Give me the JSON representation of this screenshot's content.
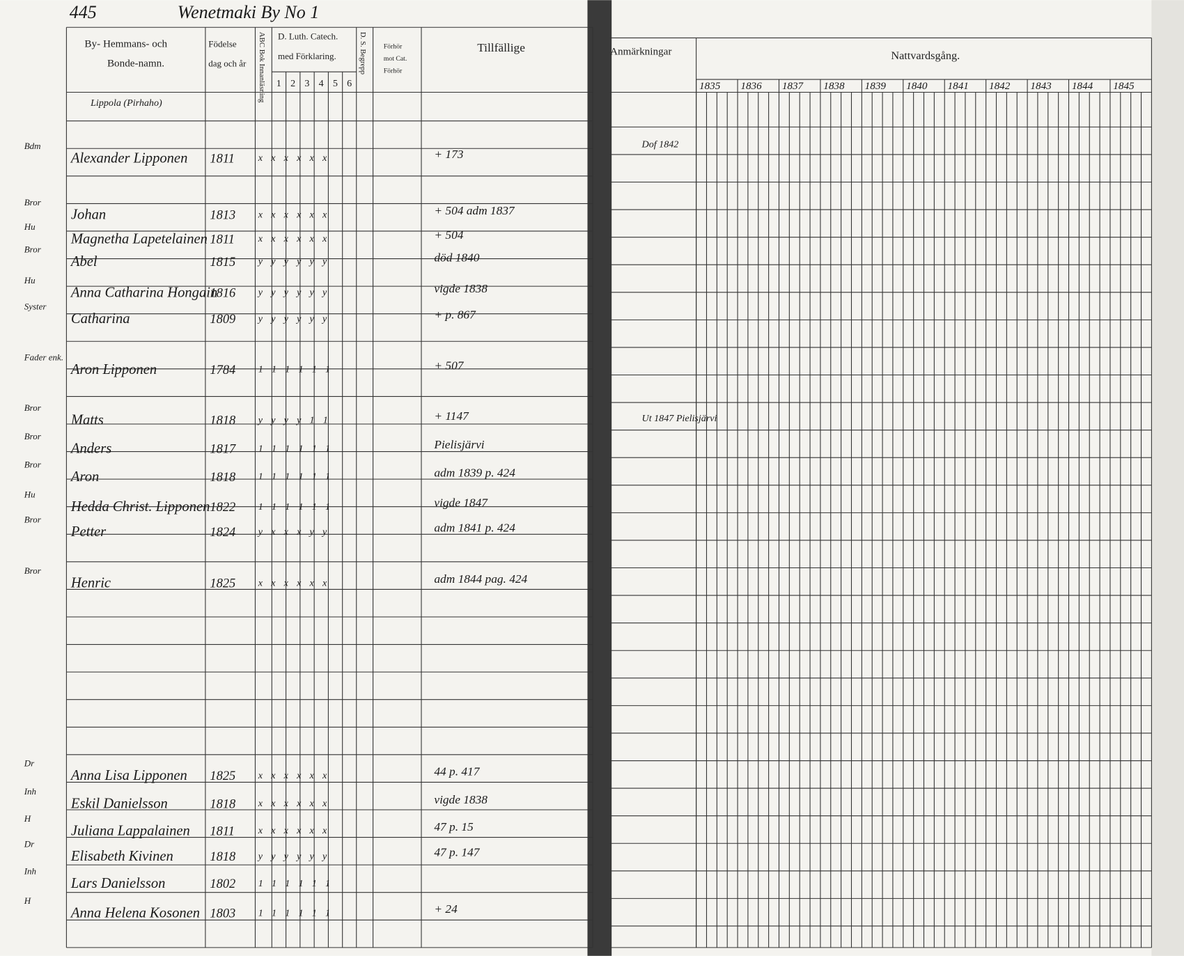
{
  "header": {
    "page_number": "445",
    "village": "Wenetmaki By No 1"
  },
  "columns": {
    "name": [
      "By- Hemmans- och",
      "Bonde-namn."
    ],
    "birth": [
      "Födelse",
      "dag och år"
    ],
    "abc": "ABC Bok Innanläsning",
    "catechism": [
      "D. Luth. Catech.",
      "med Förklaring."
    ],
    "catechism_parts": [
      "1",
      "2",
      "3",
      "4",
      "5",
      "6"
    ],
    "begrepp": "D. S. Begrepp",
    "forhor": [
      "Förhör",
      "mot Cat.",
      "Förhör"
    ],
    "occasional": "Tillfällige",
    "remarks": "Anmärkningar",
    "communion": "Nattvardsgång."
  },
  "communion_years": [
    "1835",
    "1836",
    "1837",
    "1838",
    "1839",
    "1840",
    "1841",
    "1842",
    "1843",
    "1844",
    "1845"
  ],
  "place": "Lippola (Pirhaho)",
  "rows": [
    {
      "role": "Bdm",
      "name": "Alexander Lipponen",
      "born": "1811",
      "reading": "x x x x x x",
      "note": "+ 173"
    },
    {
      "role": "Bror",
      "name": "Johan",
      "born": "1813",
      "reading": "x x x x x x",
      "note": "+ 504 adm 1837"
    },
    {
      "role": "Hu",
      "name": "Magnetha Lapetelainen",
      "born": "1811",
      "reading": "x x x x x x",
      "note": "+ 504"
    },
    {
      "role": "Bror",
      "name": "Abel",
      "born": "1815",
      "reading": "y y y y y y",
      "note": "död 1840"
    },
    {
      "role": "Hu",
      "name": "Anna Catharina Hongain",
      "born": "1816",
      "reading": "y y y y y y",
      "note": "vigde 1838"
    },
    {
      "role": "Syster",
      "name": "Catharina",
      "born": "1809",
      "reading": "y y y y y y",
      "note": "+ p. 867"
    },
    {
      "role": "Fader enk.",
      "name": "Aron Lipponen",
      "born": "1784",
      "reading": "1 1 1 1 1 1",
      "note": "+ 507"
    },
    {
      "role": "Bror",
      "name": "Matts",
      "born": "1818",
      "reading": "y y y y 1 1",
      "note": "+ 1147"
    },
    {
      "role": "Bror",
      "name": "Anders",
      "born": "1817",
      "reading": "1 1 1 1 1 1",
      "note": "Pielisjärvi"
    },
    {
      "role": "Bror",
      "name": "Aron",
      "born": "1818",
      "reading": "1 1 1 1 1 1",
      "note": "adm 1839 p. 424"
    },
    {
      "role": "Hu",
      "name": "Hedda Christ. Lipponen",
      "born": "1822",
      "reading": "1 1 1 1 1 1",
      "note": "vigde 1847"
    },
    {
      "role": "Bror",
      "name": "Petter",
      "born": "1824",
      "reading": "y x x x y y",
      "note": "adm 1841 p. 424"
    },
    {
      "role": "Bror",
      "name": "Henric",
      "born": "1825",
      "reading": "x x x x x x",
      "note": "adm 1844 pag. 424"
    },
    {
      "role": "Dr",
      "name": "Anna Lisa Lipponen",
      "born": "1825",
      "reading": "x x x x x x",
      "note": "44 p. 417"
    },
    {
      "role": "Inh",
      "name": "Eskil Danielsson",
      "born": "1818",
      "reading": "x x x x x x",
      "note": "vigde 1838"
    },
    {
      "role": "H",
      "name": "Juliana Lappalainen",
      "born": "1811",
      "reading": "x x x x x x",
      "note": "47 p. 15"
    },
    {
      "role": "Dr",
      "name": "Elisabeth Kivinen",
      "born": "1818",
      "reading": "y y y y y y",
      "note": "47 p. 147"
    },
    {
      "role": "Inh",
      "name": "Lars Danielsson",
      "born": "1802",
      "reading": "1 1 1 1 1 1"
    },
    {
      "role": "H",
      "name": "Anna Helena Kosonen",
      "born": "1803",
      "reading": "1 1 1 1 1 1",
      "note": "+ 24"
    }
  ],
  "remarks_notes": [
    "Dof 1842",
    "Ut 1847 Pielisjärvi"
  ]
}
